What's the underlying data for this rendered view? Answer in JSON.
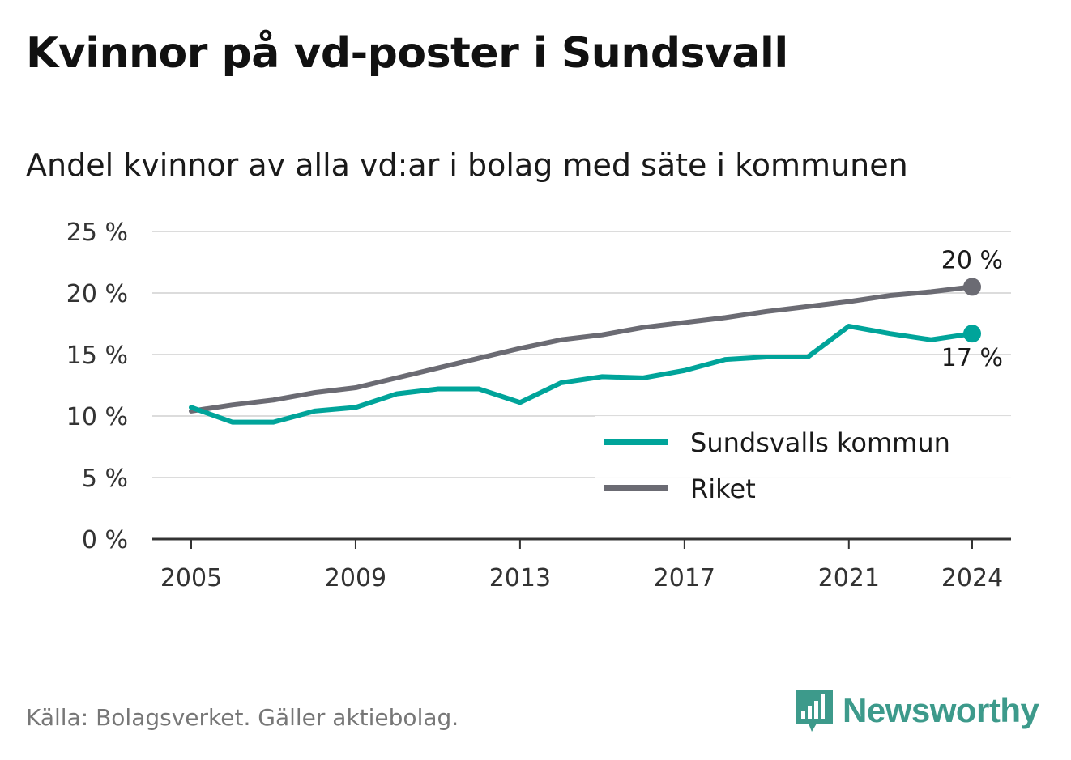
{
  "header": {
    "title": "Kvinnor på vd-poster i Sundsvall",
    "subtitle": "Andel kvinnor av alla vd:ar i bolag med säte i kommunen"
  },
  "footer": {
    "source": "Källa: Bolagsverket. Gäller aktiebolag.",
    "brand": "Newsworthy",
    "brand_icon": "bar-chart-speech-bubble-icon",
    "brand_color": "#3d9a8b"
  },
  "chart_data": {
    "type": "line",
    "title": "Kvinnor på vd-poster i Sundsvall",
    "subtitle": "Andel kvinnor av alla vd:ar i bolag med säte i kommunen",
    "x": [
      2005,
      2006,
      2007,
      2008,
      2009,
      2010,
      2011,
      2012,
      2013,
      2014,
      2015,
      2016,
      2017,
      2018,
      2019,
      2020,
      2021,
      2022,
      2023,
      2024
    ],
    "x_ticks": [
      "2005",
      "2009",
      "2013",
      "2017",
      "2021",
      "2024"
    ],
    "y_ticks": [
      "0 %",
      "5 %",
      "10 %",
      "15 %",
      "20 %",
      "25 %"
    ],
    "ylim": [
      0,
      25
    ],
    "grid": true,
    "legend_position": "bottom-right",
    "series": [
      {
        "name": "Sundsvalls kommun",
        "color": "#00a49a",
        "values": [
          10.7,
          9.5,
          9.5,
          10.4,
          10.7,
          11.8,
          12.2,
          12.2,
          11.1,
          12.7,
          13.2,
          13.1,
          13.7,
          14.6,
          14.8,
          14.8,
          17.3,
          16.7,
          16.2,
          16.7
        ],
        "end_label": "17 %"
      },
      {
        "name": "Riket",
        "color": "#6b6b73",
        "values": [
          10.4,
          10.9,
          11.3,
          11.9,
          12.3,
          13.1,
          13.9,
          14.7,
          15.5,
          16.2,
          16.6,
          17.2,
          17.6,
          18.0,
          18.5,
          18.9,
          19.3,
          19.8,
          20.1,
          20.5
        ],
        "end_label": "20 %"
      }
    ]
  }
}
